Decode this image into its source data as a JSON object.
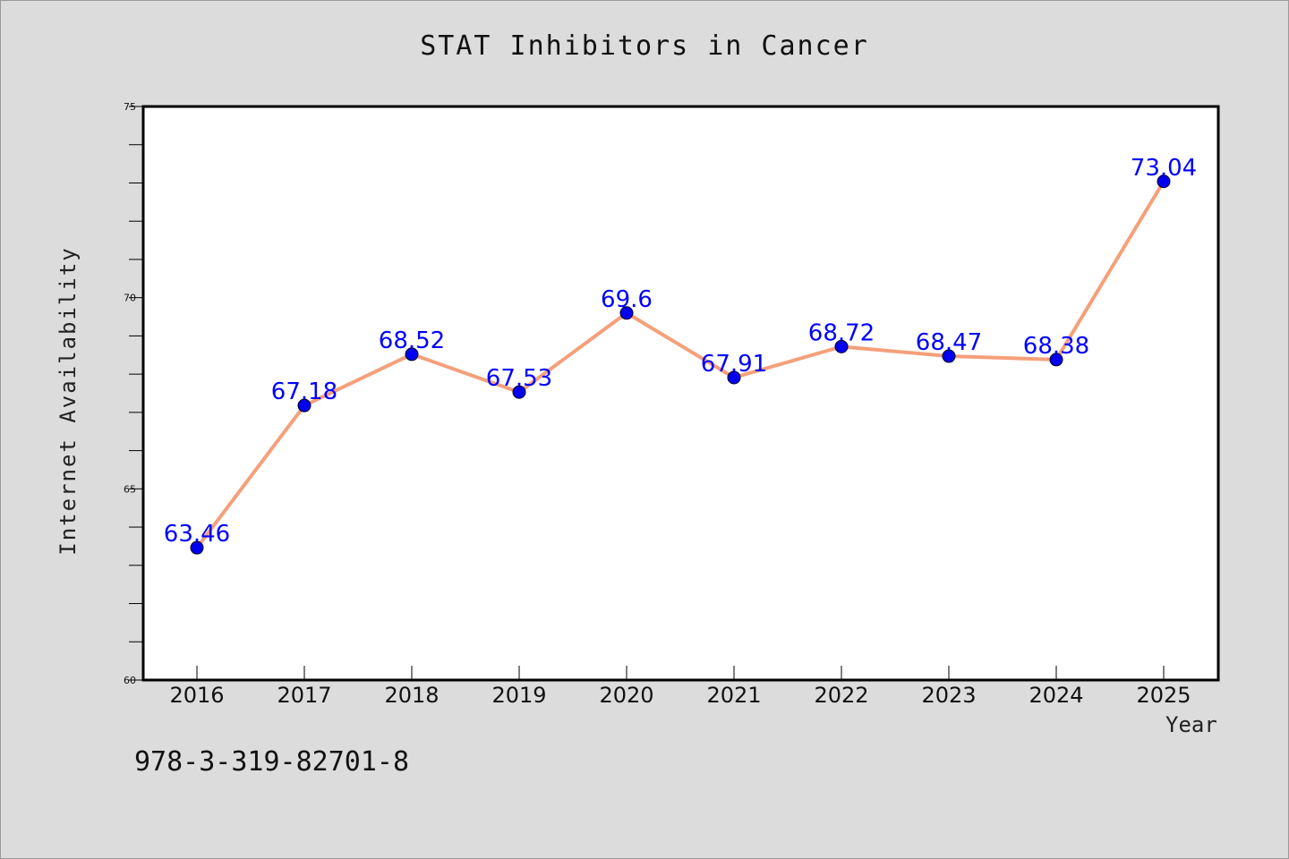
{
  "chart_data": {
    "type": "line",
    "title": "STAT Inhibitors in Cancer",
    "xlabel": "Year",
    "ylabel": "Internet Availability",
    "x": [
      "2016",
      "2017",
      "2018",
      "2019",
      "2020",
      "2021",
      "2022",
      "2023",
      "2024",
      "2025"
    ],
    "series": [
      {
        "values": [
          63.46,
          67.18,
          68.52,
          67.53,
          69.6,
          67.91,
          68.72,
          68.47,
          68.38,
          73.04
        ],
        "labels": [
          "63.46",
          "67.18",
          "68.52",
          "67.53",
          "69.6",
          "67.91",
          "68.72",
          "68.47",
          "68.38",
          "73.04"
        ],
        "line_color": "#f4a07a",
        "marker_color": "#0000ee",
        "label_color": "#0000ff"
      }
    ],
    "ylim": [
      60,
      75
    ],
    "yticks": [
      60,
      65,
      70,
      75
    ],
    "yticks_minor_step": 1,
    "grid": false,
    "legend": "none"
  },
  "footer": {
    "isbn": "978-3-319-82701-8"
  },
  "colors": {
    "background": "#dcdcdc",
    "plot_background": "#ffffff",
    "axis": "#000000"
  }
}
